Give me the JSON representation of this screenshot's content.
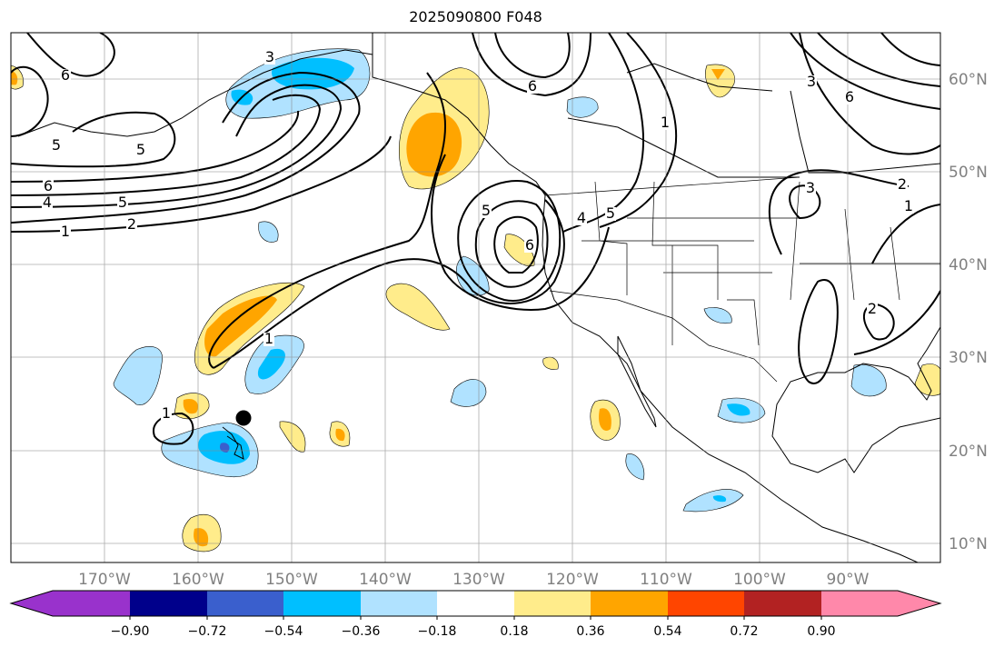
{
  "title": "2025090800 F048",
  "map": {
    "lon_labels": [
      "170°W",
      "160°W",
      "150°W",
      "140°W",
      "130°W",
      "120°W",
      "110°W",
      "100°W",
      "90°W"
    ],
    "lat_labels": [
      "60°N",
      "50°N",
      "40°N",
      "30°N",
      "20°N",
      "10°N"
    ],
    "contour_labels": [
      "6",
      "5",
      "5",
      "6",
      "4",
      "5",
      "2",
      "1",
      "3",
      "6",
      "1",
      "5",
      "4",
      "6",
      "5",
      "6",
      "3",
      "2",
      "1",
      "2",
      "1",
      "1",
      "3"
    ],
    "marker": "black-dot"
  },
  "colorbar": {
    "colors": [
      "#9932CC",
      "#00008B",
      "#3A5FCD",
      "#00BFFF",
      "#B0E2FF",
      "#FFFFFF",
      "#FFEC8B",
      "#FFA500",
      "#FF4500",
      "#B22222",
      "#FF88AA"
    ],
    "tick_labels": [
      "−0.90",
      "−0.72",
      "−0.54",
      "−0.36",
      "−0.18",
      "0.18",
      "0.36",
      "0.54",
      "0.72",
      "0.90"
    ],
    "extend": "both"
  }
}
